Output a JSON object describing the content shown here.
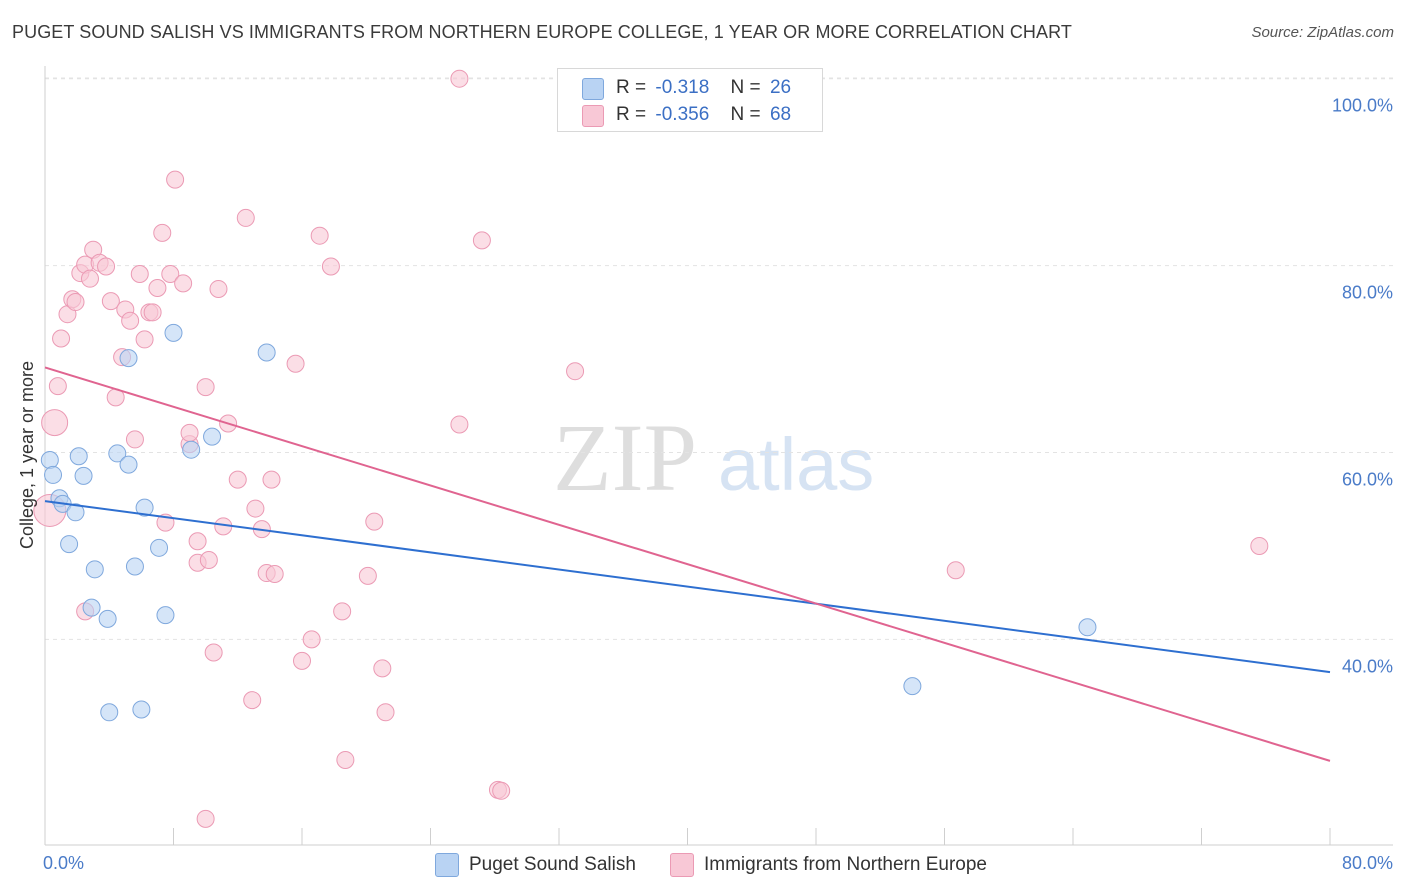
{
  "title": "PUGET SOUND SALISH VS IMMIGRANTS FROM NORTHERN EUROPE COLLEGE, 1 YEAR OR MORE CORRELATION CHART",
  "source": "Source: ZipAtlas.com",
  "watermark": {
    "zip": "ZIP",
    "atlas": "atlas"
  },
  "stats": {
    "blue": {
      "r_label": "R =",
      "r_value": "-0.318",
      "n_label": "N =",
      "n_value": "26"
    },
    "pink": {
      "r_label": "R =",
      "r_value": "-0.356",
      "n_label": "N =",
      "n_value": "68"
    }
  },
  "legend": {
    "blue_label": "Puget Sound Salish",
    "pink_label": "Immigrants from Northern Europe"
  },
  "colors": {
    "blue_fill": "#b9d3f3",
    "blue_stroke": "#7fa8dd",
    "blue_line": "#2e6fd0",
    "pink_fill": "#f8c8d6",
    "pink_stroke": "#eb9ab4",
    "pink_line": "#e06490",
    "tick_text": "#4a7bc8",
    "grid": "#e3e3e3"
  },
  "chart_data": {
    "type": "scatter",
    "title": "PUGET SOUND SALISH VS IMMIGRANTS FROM NORTHERN EUROPE COLLEGE, 1 YEAR OR MORE CORRELATION CHART",
    "xlabel": "",
    "ylabel": "College, 1 year or more",
    "xlim": [
      0,
      80
    ],
    "ylim": [
      18,
      102
    ],
    "x_tick_labels": [
      "0.0%",
      "80.0%"
    ],
    "y_ticks": [
      40,
      60,
      80,
      100
    ],
    "y_tick_labels": [
      "40.0%",
      "60.0%",
      "80.0%",
      "100.0%"
    ],
    "grid": true,
    "series": [
      {
        "name": "Puget Sound Salish",
        "color": "blue",
        "points": [
          [
            0.3,
            59.2
          ],
          [
            0.5,
            57.6
          ],
          [
            0.9,
            55.1
          ],
          [
            1.1,
            54.5
          ],
          [
            1.5,
            50.2
          ],
          [
            1.9,
            53.6
          ],
          [
            2.1,
            59.6
          ],
          [
            2.4,
            57.5
          ],
          [
            3.1,
            47.5
          ],
          [
            2.9,
            43.4
          ],
          [
            3.9,
            42.2
          ],
          [
            4.5,
            59.9
          ],
          [
            5.2,
            58.7
          ],
          [
            5.6,
            47.8
          ],
          [
            6.2,
            54.1
          ],
          [
            7.1,
            49.8
          ],
          [
            7.5,
            42.6
          ],
          [
            8.0,
            72.8
          ],
          [
            9.1,
            60.3
          ],
          [
            10.4,
            61.7
          ],
          [
            13.8,
            70.7
          ],
          [
            5.2,
            70.1
          ],
          [
            4.0,
            32.2
          ],
          [
            6.0,
            32.5
          ],
          [
            64.9,
            41.3
          ],
          [
            54.0,
            35.0
          ]
        ]
      },
      {
        "name": "Immigrants from Northern Europe",
        "color": "pink",
        "points": [
          [
            0.3,
            53.8
          ],
          [
            0.6,
            63.2
          ],
          [
            0.8,
            67.1
          ],
          [
            1.0,
            72.2
          ],
          [
            1.4,
            74.8
          ],
          [
            1.7,
            76.4
          ],
          [
            1.9,
            76.1
          ],
          [
            2.2,
            79.2
          ],
          [
            2.5,
            80.1
          ],
          [
            2.8,
            78.6
          ],
          [
            3.0,
            81.7
          ],
          [
            3.4,
            80.3
          ],
          [
            3.8,
            79.9
          ],
          [
            4.1,
            76.2
          ],
          [
            4.4,
            65.9
          ],
          [
            4.8,
            70.2
          ],
          [
            5.0,
            75.3
          ],
          [
            5.3,
            74.1
          ],
          [
            5.6,
            61.4
          ],
          [
            5.9,
            79.1
          ],
          [
            6.2,
            72.1
          ],
          [
            6.5,
            75.0
          ],
          [
            6.7,
            75.0
          ],
          [
            7.0,
            77.6
          ],
          [
            7.3,
            83.5
          ],
          [
            7.8,
            79.1
          ],
          [
            8.1,
            89.2
          ],
          [
            8.6,
            78.1
          ],
          [
            9.0,
            60.9
          ],
          [
            9.0,
            62.1
          ],
          [
            9.5,
            48.2
          ],
          [
            9.5,
            50.5
          ],
          [
            10.0,
            67.0
          ],
          [
            10.2,
            48.5
          ],
          [
            10.5,
            38.6
          ],
          [
            10.8,
            77.5
          ],
          [
            11.1,
            52.1
          ],
          [
            11.4,
            63.1
          ],
          [
            12.0,
            57.1
          ],
          [
            12.5,
            85.1
          ],
          [
            12.9,
            33.5
          ],
          [
            13.1,
            54.0
          ],
          [
            13.5,
            51.8
          ],
          [
            13.8,
            47.1
          ],
          [
            14.1,
            57.1
          ],
          [
            14.3,
            47.0
          ],
          [
            7.5,
            52.5
          ],
          [
            15.6,
            69.5
          ],
          [
            16.0,
            37.7
          ],
          [
            16.6,
            40.0
          ],
          [
            17.1,
            83.2
          ],
          [
            17.8,
            79.9
          ],
          [
            18.5,
            43.0
          ],
          [
            18.7,
            27.1
          ],
          [
            20.1,
            46.8
          ],
          [
            20.5,
            52.6
          ],
          [
            21.0,
            36.9
          ],
          [
            21.2,
            32.2
          ],
          [
            10.0,
            20.8
          ],
          [
            25.8,
            63.0
          ],
          [
            25.8,
            100.0
          ],
          [
            27.2,
            82.7
          ],
          [
            28.2,
            23.9
          ],
          [
            28.4,
            23.8
          ],
          [
            33.0,
            68.7
          ],
          [
            56.7,
            47.4
          ],
          [
            75.6,
            50.0
          ],
          [
            2.5,
            43.0
          ]
        ]
      }
    ],
    "trendlines": [
      {
        "series": "Puget Sound Salish",
        "from": [
          0,
          54.8
        ],
        "to": [
          80,
          36.5
        ]
      },
      {
        "series": "Immigrants from Northern Europe",
        "from": [
          0,
          69.1
        ],
        "to": [
          80,
          27.0
        ]
      }
    ]
  }
}
